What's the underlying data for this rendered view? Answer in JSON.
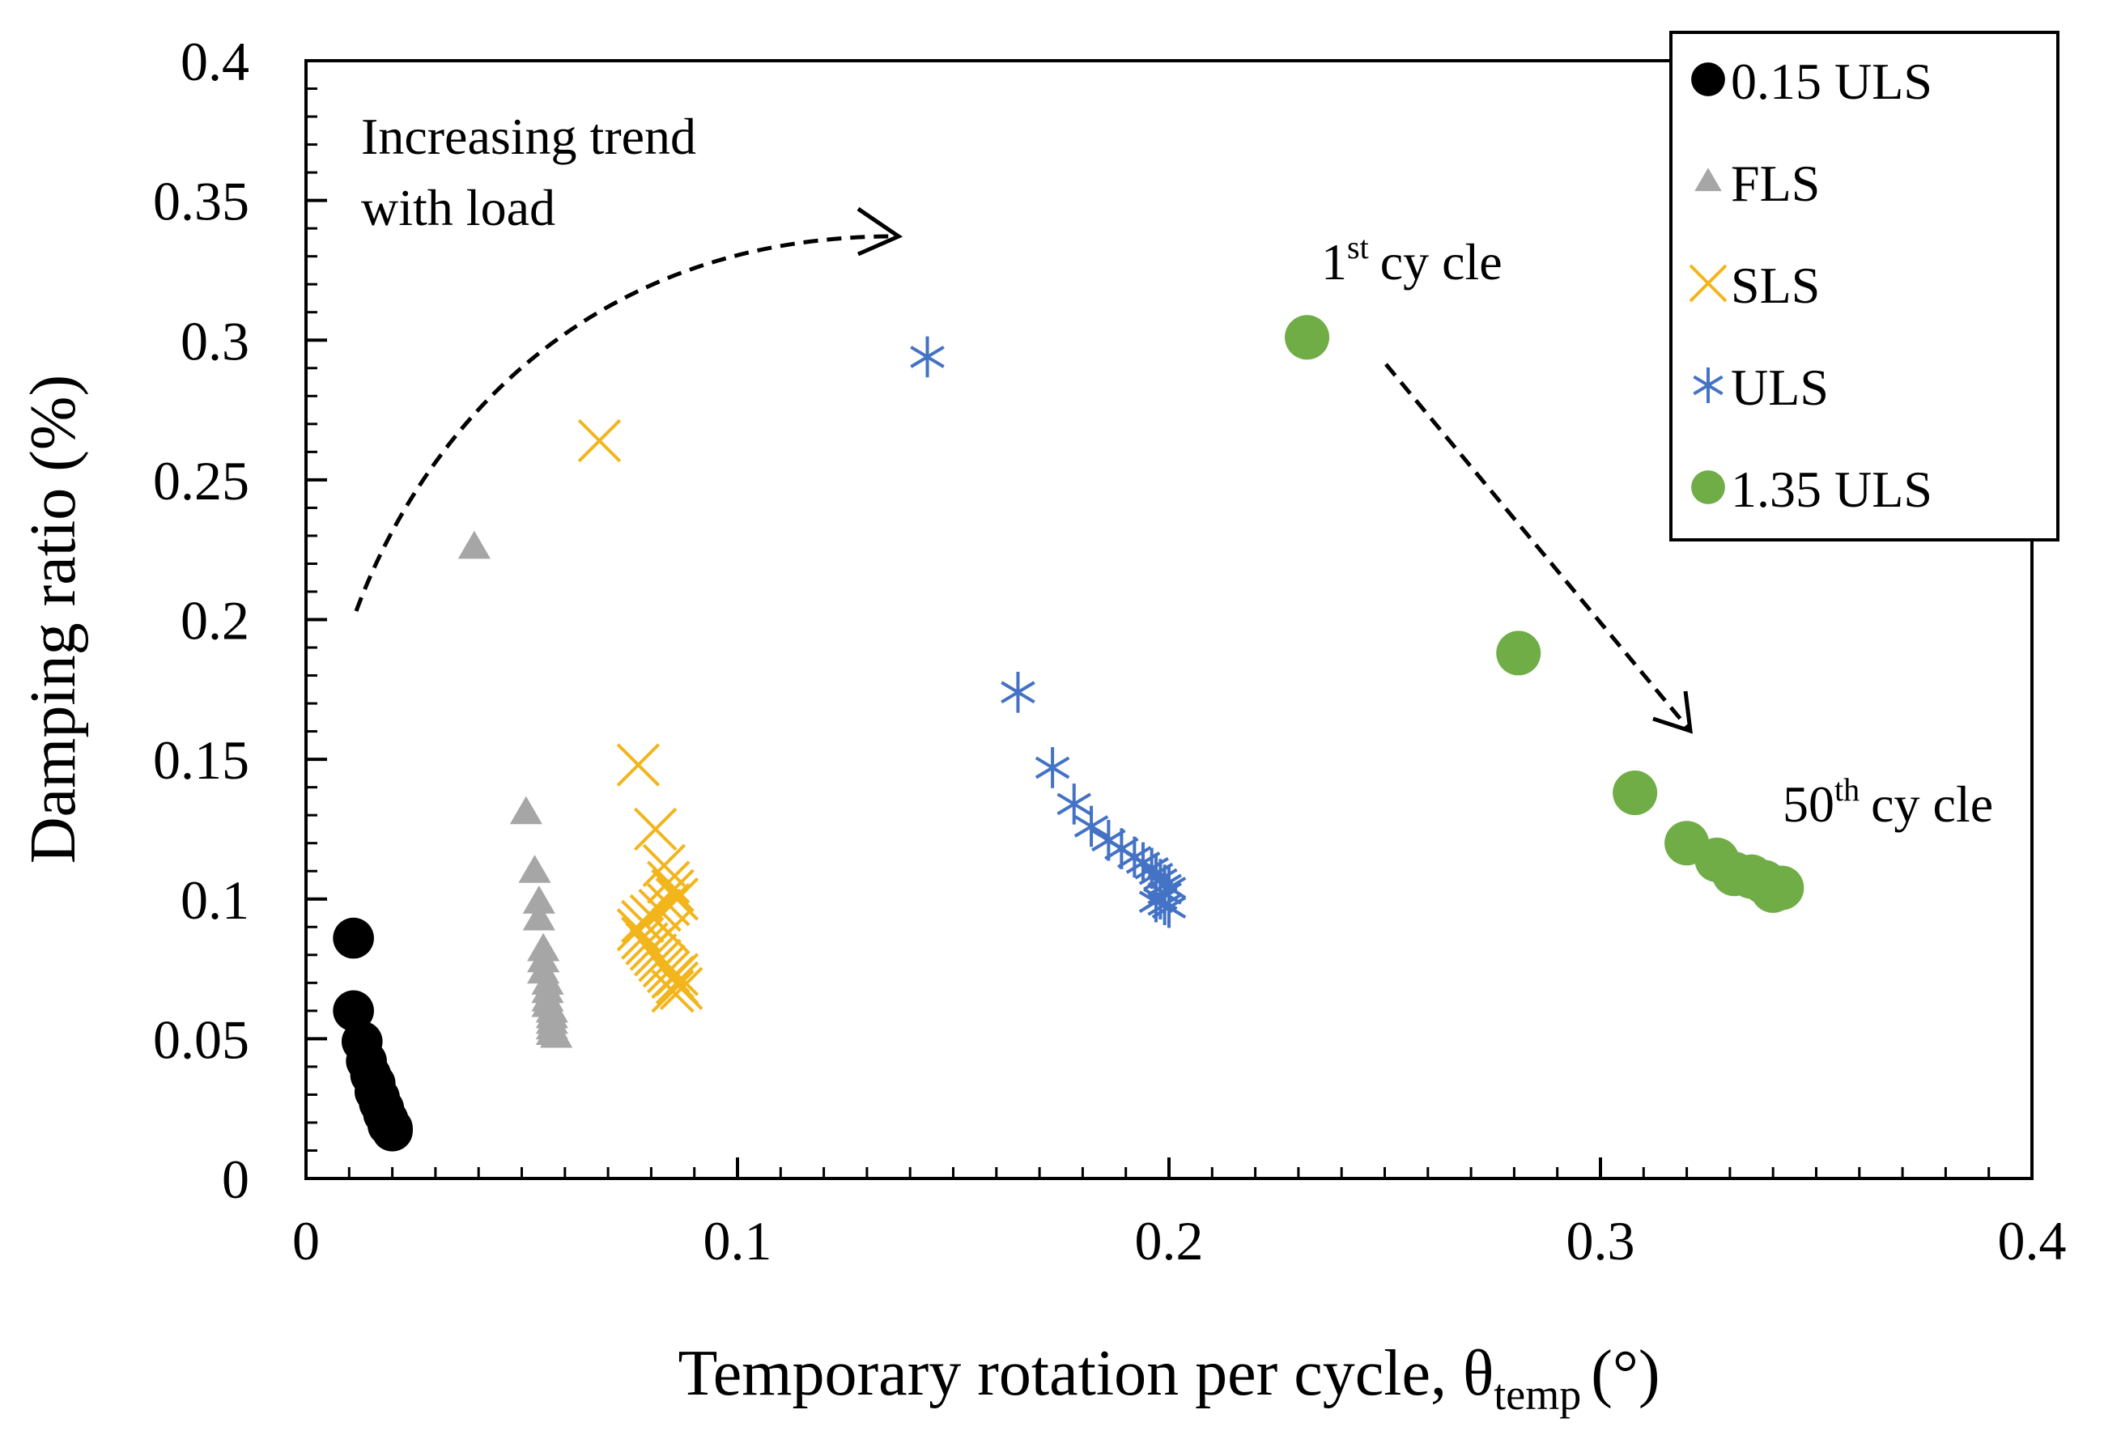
{
  "chart_data": {
    "type": "scatter",
    "title": "",
    "xlabel": "Temporary rotation per cycle, θ",
    "xlabel_sub": "temp",
    "xlabel_unit": "(°)",
    "ylabel": "Damping ratio (%)",
    "xlim": [
      0,
      0.4
    ],
    "ylim": [
      0,
      0.4
    ],
    "x_ticks": [
      0,
      0.1,
      0.2,
      0.3,
      0.4
    ],
    "x_tick_labels": [
      "0",
      "0.1",
      "0.2",
      "0.3",
      "0.4"
    ],
    "y_ticks": [
      0,
      0.05,
      0.1,
      0.15,
      0.2,
      0.25,
      0.3,
      0.35,
      0.4
    ],
    "y_tick_labels": [
      "0",
      "0.05",
      "0.1",
      "0.15",
      "0.2",
      "0.25",
      "0.3",
      "0.35",
      "0.4"
    ],
    "grid": false,
    "legend_position": "top-right",
    "series": [
      {
        "name": "0.15 ULS",
        "marker": "circle",
        "color": "#000000",
        "x": [
          0.011,
          0.011,
          0.013,
          0.014,
          0.015,
          0.016,
          0.016,
          0.017,
          0.017,
          0.018,
          0.018,
          0.019,
          0.019,
          0.02,
          0.02
        ],
        "y": [
          0.086,
          0.06,
          0.049,
          0.042,
          0.037,
          0.034,
          0.031,
          0.029,
          0.027,
          0.025,
          0.023,
          0.021,
          0.019,
          0.018,
          0.017
        ]
      },
      {
        "name": "FLS",
        "marker": "triangle",
        "color": "#a6a6a6",
        "x": [
          0.039,
          0.051,
          0.053,
          0.054,
          0.054,
          0.055,
          0.055,
          0.055,
          0.056,
          0.056,
          0.056,
          0.056,
          0.057,
          0.057,
          0.057,
          0.057,
          0.057,
          0.058
        ],
        "y": [
          0.226,
          0.131,
          0.11,
          0.099,
          0.093,
          0.082,
          0.078,
          0.074,
          0.07,
          0.067,
          0.064,
          0.062,
          0.06,
          0.058,
          0.056,
          0.054,
          0.052,
          0.051
        ]
      },
      {
        "name": "SLS",
        "marker": "x",
        "color": "#f2b51c",
        "x": [
          0.068,
          0.077,
          0.081,
          0.083,
          0.084,
          0.085,
          0.086,
          0.084,
          0.082,
          0.08,
          0.078,
          0.077,
          0.078,
          0.079,
          0.08,
          0.081,
          0.082,
          0.083,
          0.084,
          0.085,
          0.086,
          0.087,
          0.085,
          0.086,
          0.084
        ],
        "y": [
          0.264,
          0.148,
          0.125,
          0.112,
          0.106,
          0.103,
          0.1,
          0.098,
          0.096,
          0.094,
          0.092,
          0.089,
          0.086,
          0.084,
          0.082,
          0.08,
          0.078,
          0.076,
          0.074,
          0.072,
          0.07,
          0.068,
          0.067,
          0.073,
          0.088
        ]
      },
      {
        "name": "ULS",
        "marker": "asterisk",
        "color": "#4472c4",
        "x": [
          0.144,
          0.165,
          0.173,
          0.178,
          0.182,
          0.186,
          0.189,
          0.192,
          0.194,
          0.196,
          0.197,
          0.198,
          0.199,
          0.2,
          0.199,
          0.198,
          0.197,
          0.199,
          0.2
        ],
        "y": [
          0.294,
          0.174,
          0.147,
          0.134,
          0.126,
          0.121,
          0.118,
          0.115,
          0.113,
          0.111,
          0.109,
          0.107,
          0.105,
          0.104,
          0.102,
          0.1,
          0.099,
          0.098,
          0.097
        ]
      },
      {
        "name": "1.35 ULS",
        "marker": "circle",
        "color": "#70ad47",
        "x": [
          0.232,
          0.281,
          0.308,
          0.32,
          0.327,
          0.331,
          0.335,
          0.338,
          0.34,
          0.342
        ],
        "y": [
          0.301,
          0.188,
          0.138,
          0.12,
          0.114,
          0.109,
          0.108,
          0.106,
          0.103,
          0.104
        ]
      }
    ],
    "annotations": {
      "trend_line1": "Increasing trend",
      "trend_line2": "with load",
      "first_cycle_num": "1",
      "first_cycle_sup": "st",
      "first_cycle_word": "cy cle",
      "last_cycle_num": "50",
      "last_cycle_sup": "th",
      "last_cycle_word": "cy cle"
    }
  }
}
